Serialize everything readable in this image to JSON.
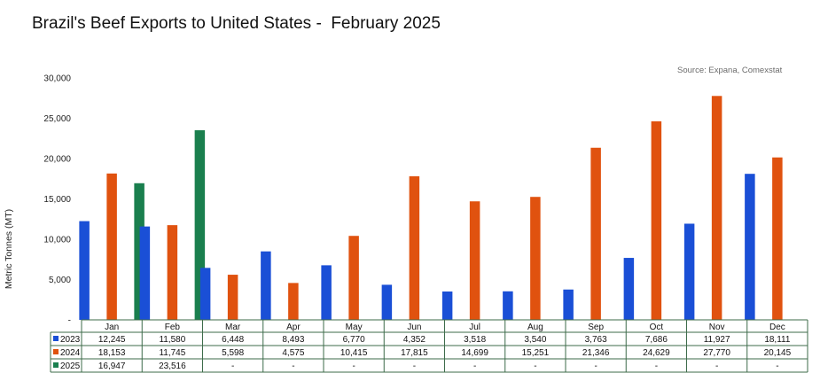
{
  "chart_data": {
    "type": "bar",
    "title": "Brazil's Beef Exports to United States -  February 2025",
    "source": "Source: Expana, Comexstat",
    "ylabel": "Metric Tonnes (MT)",
    "xlabel": "",
    "ylim": [
      0,
      30000
    ],
    "yticks": [
      "-",
      "5,000",
      "10,000",
      "15,000",
      "20,000",
      "25,000",
      "30,000"
    ],
    "ytick_values": [
      0,
      5000,
      10000,
      15000,
      20000,
      25000,
      30000
    ],
    "grid": false,
    "legend": "data-table",
    "categories": [
      "Jan",
      "Feb",
      "Mar",
      "Apr",
      "May",
      "Jun",
      "Jul",
      "Aug",
      "Sep",
      "Oct",
      "Nov",
      "Dec"
    ],
    "series": [
      {
        "name": "2023",
        "color": "#1a4fd6",
        "values": [
          12245,
          11580,
          6448,
          8493,
          6770,
          4352,
          3518,
          3540,
          3763,
          7686,
          11927,
          18111
        ],
        "labels": [
          "12,245",
          "11,580",
          "6,448",
          "8,493",
          "6,770",
          "4,352",
          "3,518",
          "3,540",
          "3,763",
          "7,686",
          "11,927",
          "18,111"
        ]
      },
      {
        "name": "2024",
        "color": "#e0520f",
        "values": [
          18153,
          11745,
          5598,
          4575,
          10415,
          17815,
          14699,
          15251,
          21346,
          24629,
          27770,
          20145
        ],
        "labels": [
          "18,153",
          "11,745",
          "5,598",
          "4,575",
          "10,415",
          "17,815",
          "14,699",
          "15,251",
          "21,346",
          "24,629",
          "27,770",
          "20,145"
        ]
      },
      {
        "name": "2025",
        "color": "#1a7f4e",
        "values": [
          16947,
          23516,
          null,
          null,
          null,
          null,
          null,
          null,
          null,
          null,
          null,
          null
        ],
        "labels": [
          "16,947",
          "23,516",
          "-",
          "-",
          "-",
          "-",
          "-",
          "-",
          "-",
          "-",
          "-",
          "-"
        ]
      }
    ]
  }
}
